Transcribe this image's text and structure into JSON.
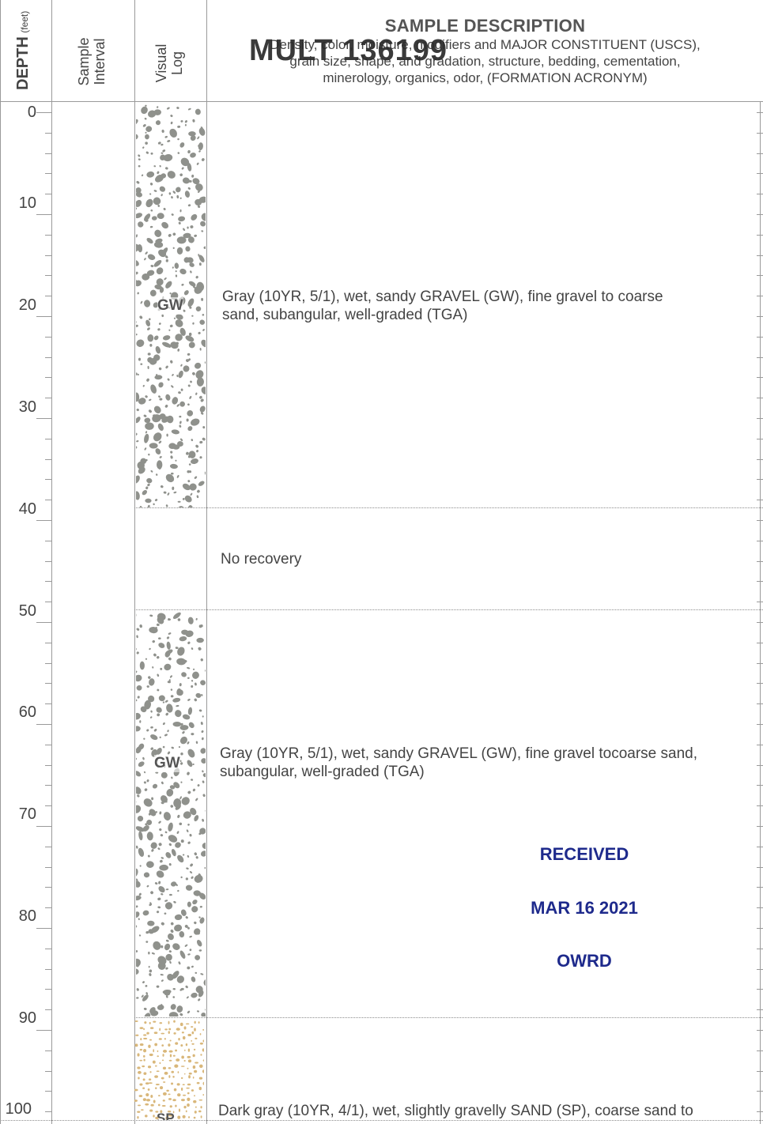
{
  "header": {
    "depth_label": "DEPTH",
    "depth_unit": "(feet)",
    "sample_label_line1": "Sample",
    "sample_label_line2": "Interval",
    "visual_label_line1": "Visual",
    "visual_label_line2": "Log",
    "description_title": "SAMPLE DESCRIPTION",
    "description_line1": "Density, color, moisture, modifiers and MAJOR CONSTITUENT (USCS),",
    "description_line2": "grain size, shape, and gradation, structure, bedding, cementation,",
    "description_line3": "minerology, organics, odor, (FORMATION ACRONYM)"
  },
  "well_id": "MULT 136199",
  "depth_scale": [
    "0",
    "10",
    "20",
    "30",
    "40",
    "50",
    "60",
    "70",
    "80",
    "90",
    "100"
  ],
  "layers": [
    {
      "symbol": "GW",
      "description_line1": "Gray (10YR, 5/1), wet, sandy GRAVEL (GW), fine gravel to coarse",
      "description_line2": "sand, subangular, well-graded (TGA)"
    },
    {
      "symbol": "",
      "description_line1": "No recovery",
      "description_line2": ""
    },
    {
      "symbol": "GW",
      "description_line1": "Gray (10YR, 5/1), wet, sandy GRAVEL (GW), fine gravel tocoarse sand,",
      "description_line2": "subangular, well-graded (TGA)"
    },
    {
      "symbol": "SP",
      "description_line1": "Dark gray (10YR, 4/1), wet, slightly gravelly SAND (SP), coarse sand to",
      "description_line2": ""
    }
  ],
  "stamp": {
    "line1": "RECEIVED",
    "line2": "MAR 16 2021",
    "line3": "OWRD",
    "color": "#1e2a8c"
  },
  "colors": {
    "gravel": "#8f918c",
    "sand": "#d9b77a",
    "grid": "#9a9a9a"
  }
}
